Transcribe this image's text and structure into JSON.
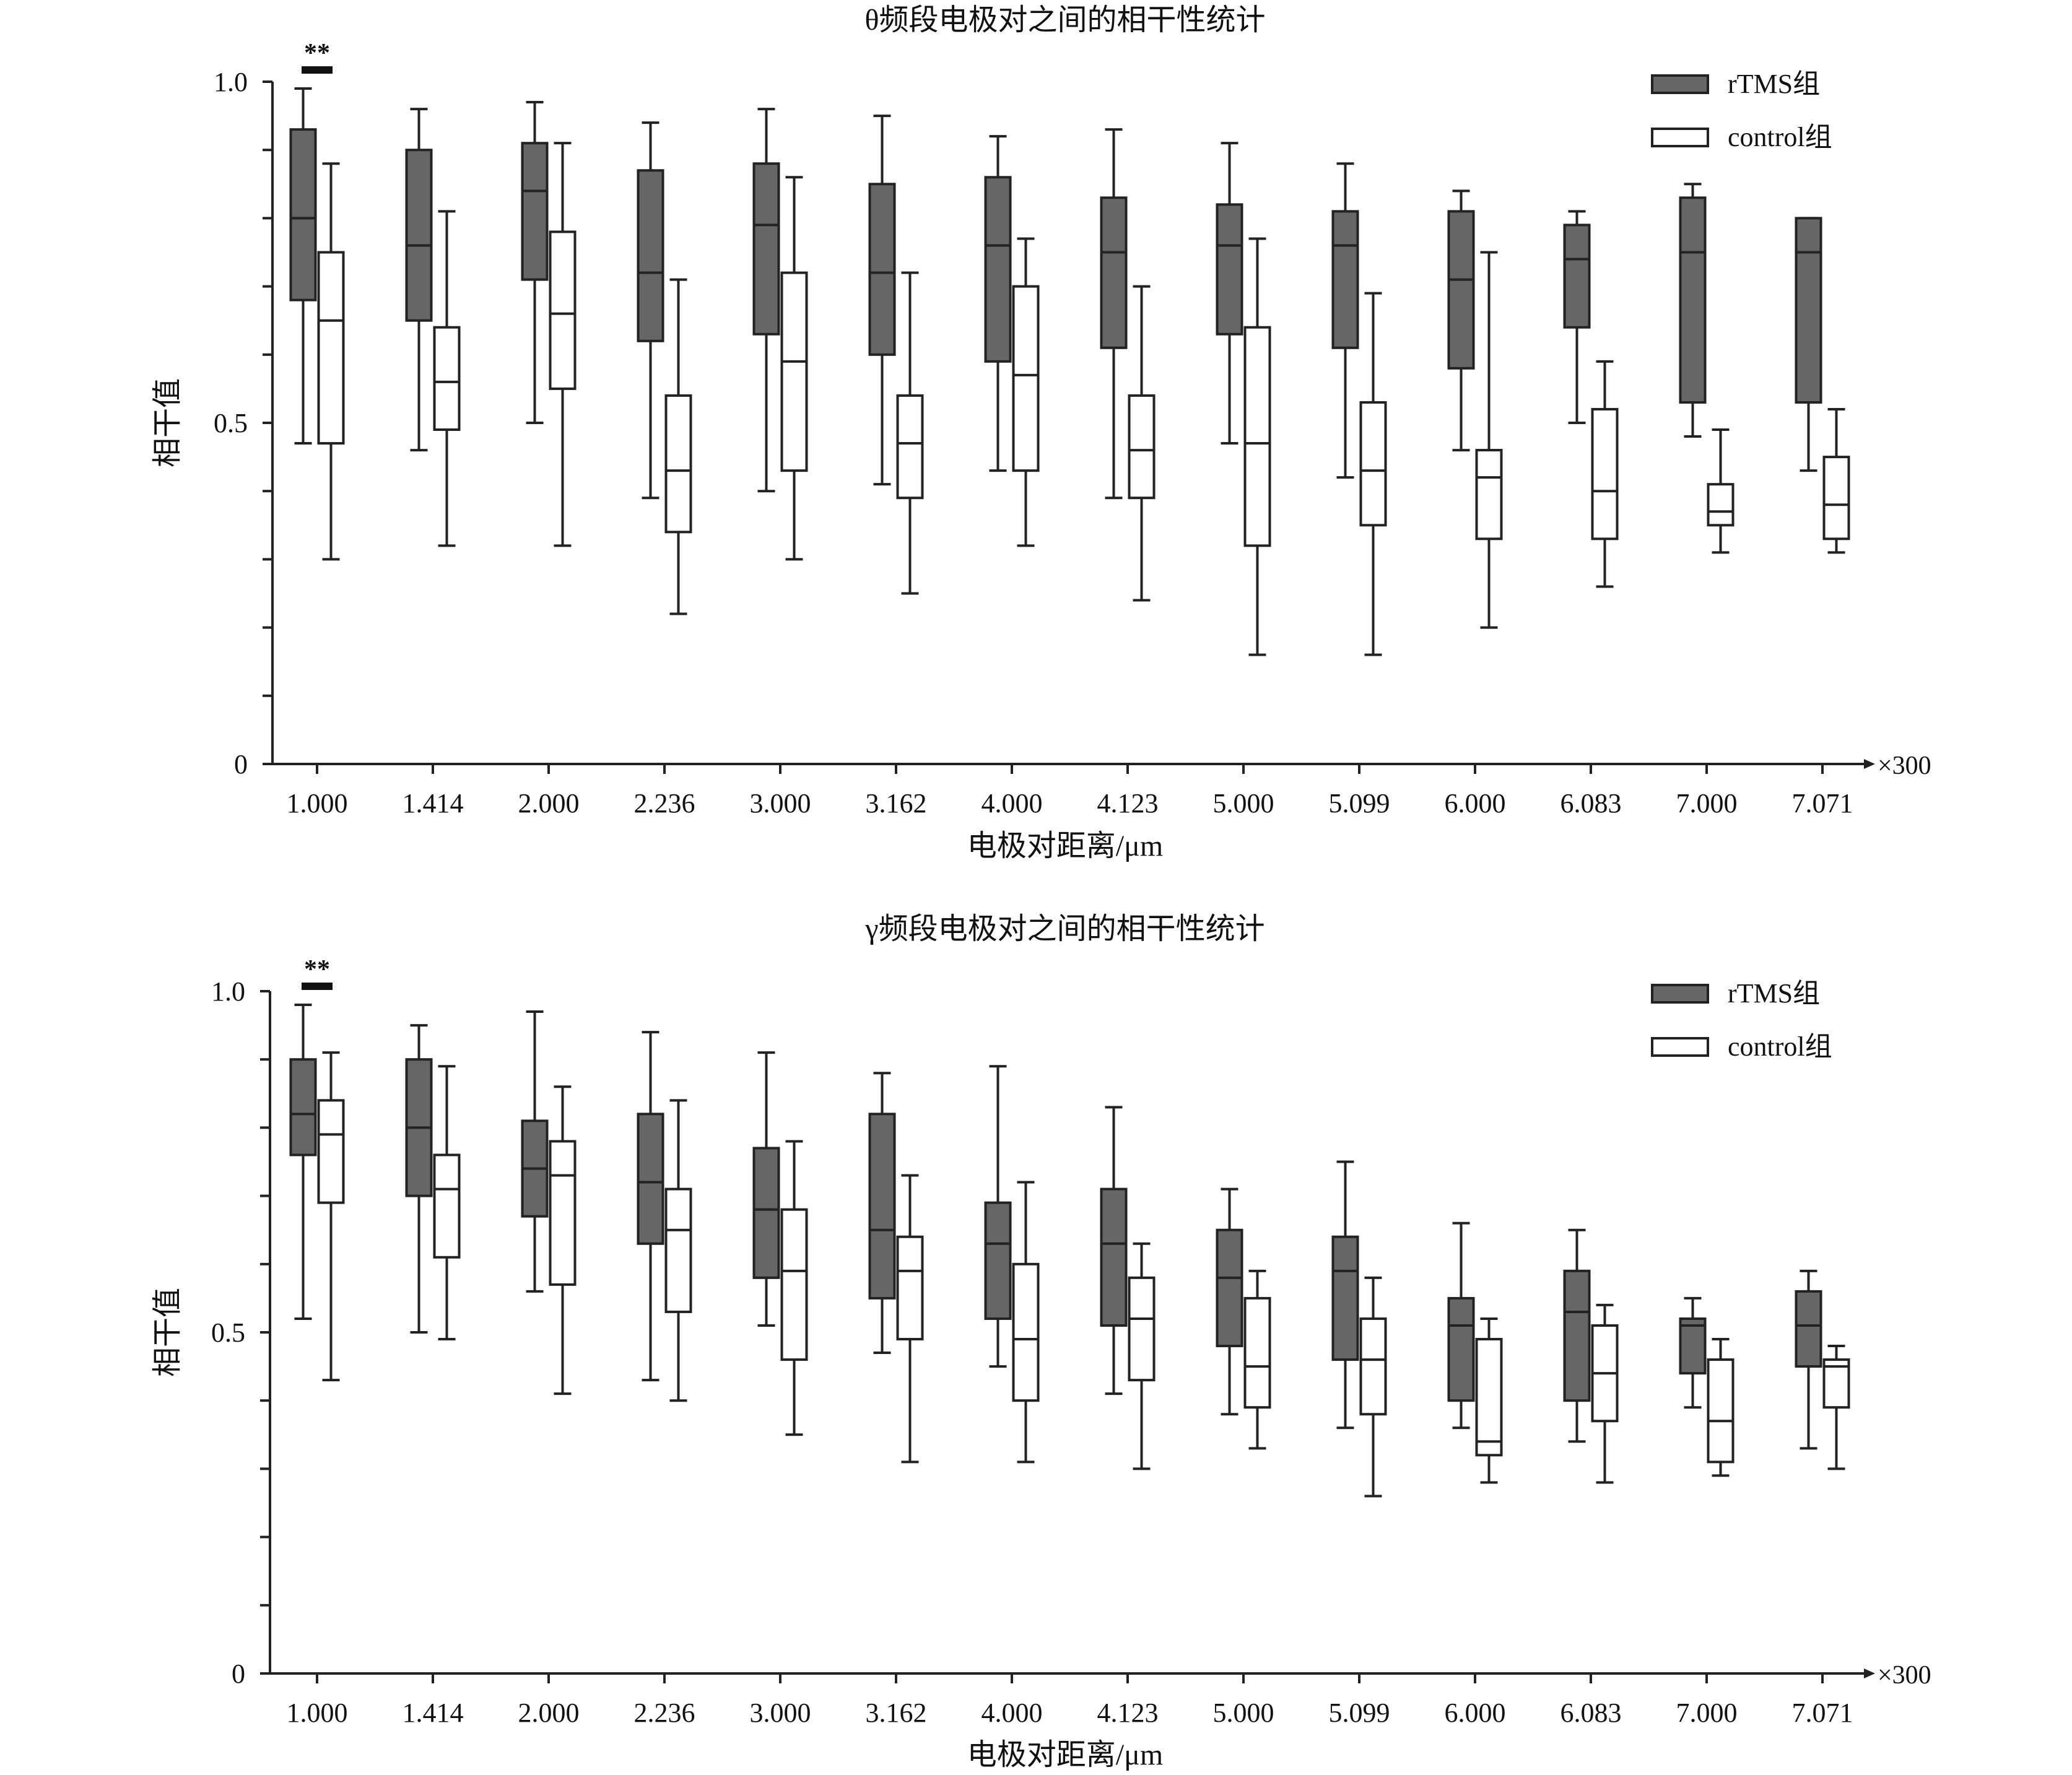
{
  "colors": {
    "rtms": "#666666",
    "control": "#ffffff",
    "stroke": "#222222"
  },
  "chart_data": [
    {
      "type": "box",
      "title": "θ频段电极对之间的相干性统计",
      "xlabel": "电极对距离/μm",
      "ylabel": "相干值",
      "x_multiplier": "×300",
      "ylim": [
        0,
        1.0
      ],
      "ytick_labels": [
        "0",
        "0.5",
        "1.0"
      ],
      "ytick_values": [
        0,
        0.1,
        0.2,
        0.3,
        0.4,
        0.5,
        0.6,
        0.7,
        0.8,
        0.9,
        1.0
      ],
      "legend": [
        "rTMS组",
        "control组"
      ],
      "legend_position": "top-right",
      "significance": {
        "category_index": 0,
        "label": "**"
      },
      "categories": [
        "1.000",
        "1.414",
        "2.000",
        "2.236",
        "3.000",
        "3.162",
        "4.000",
        "4.123",
        "5.000",
        "5.099",
        "6.000",
        "6.083",
        "7.000",
        "7.071"
      ],
      "series": [
        {
          "name": "rTMS组",
          "boxes": [
            {
              "min": 0.47,
              "q1": 0.68,
              "median": 0.8,
              "q3": 0.93,
              "max": 0.99
            },
            {
              "min": 0.46,
              "q1": 0.65,
              "median": 0.76,
              "q3": 0.9,
              "max": 0.96
            },
            {
              "min": 0.5,
              "q1": 0.71,
              "median": 0.84,
              "q3": 0.91,
              "max": 0.97
            },
            {
              "min": 0.39,
              "q1": 0.62,
              "median": 0.72,
              "q3": 0.87,
              "max": 0.94
            },
            {
              "min": 0.4,
              "q1": 0.63,
              "median": 0.79,
              "q3": 0.88,
              "max": 0.96
            },
            {
              "min": 0.41,
              "q1": 0.6,
              "median": 0.72,
              "q3": 0.85,
              "max": 0.95
            },
            {
              "min": 0.43,
              "q1": 0.59,
              "median": 0.76,
              "q3": 0.86,
              "max": 0.92
            },
            {
              "min": 0.39,
              "q1": 0.61,
              "median": 0.75,
              "q3": 0.83,
              "max": 0.93
            },
            {
              "min": 0.47,
              "q1": 0.63,
              "median": 0.76,
              "q3": 0.82,
              "max": 0.91
            },
            {
              "min": 0.42,
              "q1": 0.61,
              "median": 0.76,
              "q3": 0.81,
              "max": 0.88
            },
            {
              "min": 0.46,
              "q1": 0.58,
              "median": 0.71,
              "q3": 0.81,
              "max": 0.84
            },
            {
              "min": 0.5,
              "q1": 0.64,
              "median": 0.74,
              "q3": 0.79,
              "max": 0.81
            },
            {
              "min": 0.48,
              "q1": 0.53,
              "median": 0.75,
              "q3": 0.83,
              "max": 0.85
            },
            {
              "min": 0.43,
              "q1": 0.53,
              "median": 0.75,
              "q3": 0.8,
              "max": 0.8
            }
          ]
        },
        {
          "name": "control组",
          "boxes": [
            {
              "min": 0.3,
              "q1": 0.47,
              "median": 0.65,
              "q3": 0.75,
              "max": 0.88
            },
            {
              "min": 0.32,
              "q1": 0.49,
              "median": 0.56,
              "q3": 0.64,
              "max": 0.81
            },
            {
              "min": 0.32,
              "q1": 0.55,
              "median": 0.66,
              "q3": 0.78,
              "max": 0.91
            },
            {
              "min": 0.22,
              "q1": 0.34,
              "median": 0.43,
              "q3": 0.54,
              "max": 0.71
            },
            {
              "min": 0.3,
              "q1": 0.43,
              "median": 0.59,
              "q3": 0.72,
              "max": 0.86
            },
            {
              "min": 0.25,
              "q1": 0.39,
              "median": 0.47,
              "q3": 0.54,
              "max": 0.72
            },
            {
              "min": 0.32,
              "q1": 0.43,
              "median": 0.57,
              "q3": 0.7,
              "max": 0.77
            },
            {
              "min": 0.24,
              "q1": 0.39,
              "median": 0.46,
              "q3": 0.54,
              "max": 0.7
            },
            {
              "min": 0.16,
              "q1": 0.32,
              "median": 0.47,
              "q3": 0.64,
              "max": 0.77
            },
            {
              "min": 0.16,
              "q1": 0.35,
              "median": 0.43,
              "q3": 0.53,
              "max": 0.69
            },
            {
              "min": 0.2,
              "q1": 0.33,
              "median": 0.42,
              "q3": 0.46,
              "max": 0.75
            },
            {
              "min": 0.26,
              "q1": 0.33,
              "median": 0.4,
              "q3": 0.52,
              "max": 0.59
            },
            {
              "min": 0.31,
              "q1": 0.35,
              "median": 0.37,
              "q3": 0.41,
              "max": 0.49
            },
            {
              "min": 0.31,
              "q1": 0.33,
              "median": 0.38,
              "q3": 0.45,
              "max": 0.52
            }
          ]
        }
      ]
    },
    {
      "type": "box",
      "title": "γ频段电极对之间的相干性统计",
      "xlabel": "电极对距离/μm",
      "ylabel": "相干值",
      "x_multiplier": "×300",
      "ylim": [
        0,
        1.0
      ],
      "ytick_labels": [
        "0",
        "0.5",
        "1.0"
      ],
      "ytick_values": [
        0,
        0.1,
        0.2,
        0.3,
        0.4,
        0.5,
        0.6,
        0.7,
        0.8,
        0.9,
        1.0
      ],
      "legend": [
        "rTMS组",
        "control组"
      ],
      "legend_position": "top-right",
      "significance": {
        "category_index": 0,
        "label": "**"
      },
      "categories": [
        "1.000",
        "1.414",
        "2.000",
        "2.236",
        "3.000",
        "3.162",
        "4.000",
        "4.123",
        "5.000",
        "5.099",
        "6.000",
        "6.083",
        "7.000",
        "7.071"
      ],
      "series": [
        {
          "name": "rTMS组",
          "boxes": [
            {
              "min": 0.52,
              "q1": 0.76,
              "median": 0.82,
              "q3": 0.9,
              "max": 0.98
            },
            {
              "min": 0.5,
              "q1": 0.7,
              "median": 0.8,
              "q3": 0.9,
              "max": 0.95
            },
            {
              "min": 0.56,
              "q1": 0.67,
              "median": 0.74,
              "q3": 0.81,
              "max": 0.97
            },
            {
              "min": 0.43,
              "q1": 0.63,
              "median": 0.72,
              "q3": 0.82,
              "max": 0.94
            },
            {
              "min": 0.51,
              "q1": 0.58,
              "median": 0.68,
              "q3": 0.77,
              "max": 0.91
            },
            {
              "min": 0.47,
              "q1": 0.55,
              "median": 0.65,
              "q3": 0.82,
              "max": 0.88
            },
            {
              "min": 0.45,
              "q1": 0.52,
              "median": 0.63,
              "q3": 0.69,
              "max": 0.89
            },
            {
              "min": 0.41,
              "q1": 0.51,
              "median": 0.63,
              "q3": 0.71,
              "max": 0.83
            },
            {
              "min": 0.38,
              "q1": 0.48,
              "median": 0.58,
              "q3": 0.65,
              "max": 0.71
            },
            {
              "min": 0.36,
              "q1": 0.46,
              "median": 0.59,
              "q3": 0.64,
              "max": 0.75
            },
            {
              "min": 0.36,
              "q1": 0.4,
              "median": 0.51,
              "q3": 0.55,
              "max": 0.66
            },
            {
              "min": 0.34,
              "q1": 0.4,
              "median": 0.53,
              "q3": 0.59,
              "max": 0.65
            },
            {
              "min": 0.39,
              "q1": 0.44,
              "median": 0.51,
              "q3": 0.52,
              "max": 0.55
            },
            {
              "min": 0.33,
              "q1": 0.45,
              "median": 0.51,
              "q3": 0.56,
              "max": 0.59
            }
          ]
        },
        {
          "name": "control组",
          "boxes": [
            {
              "min": 0.43,
              "q1": 0.69,
              "median": 0.79,
              "q3": 0.84,
              "max": 0.91
            },
            {
              "min": 0.49,
              "q1": 0.61,
              "median": 0.71,
              "q3": 0.76,
              "max": 0.89
            },
            {
              "min": 0.41,
              "q1": 0.57,
              "median": 0.73,
              "q3": 0.78,
              "max": 0.86
            },
            {
              "min": 0.4,
              "q1": 0.53,
              "median": 0.65,
              "q3": 0.71,
              "max": 0.84
            },
            {
              "min": 0.35,
              "q1": 0.46,
              "median": 0.59,
              "q3": 0.68,
              "max": 0.78
            },
            {
              "min": 0.31,
              "q1": 0.49,
              "median": 0.59,
              "q3": 0.64,
              "max": 0.73
            },
            {
              "min": 0.31,
              "q1": 0.4,
              "median": 0.49,
              "q3": 0.6,
              "max": 0.72
            },
            {
              "min": 0.3,
              "q1": 0.43,
              "median": 0.52,
              "q3": 0.58,
              "max": 0.63
            },
            {
              "min": 0.33,
              "q1": 0.39,
              "median": 0.45,
              "q3": 0.55,
              "max": 0.59
            },
            {
              "min": 0.26,
              "q1": 0.38,
              "median": 0.46,
              "q3": 0.52,
              "max": 0.58
            },
            {
              "min": 0.28,
              "q1": 0.32,
              "median": 0.34,
              "q3": 0.49,
              "max": 0.52
            },
            {
              "min": 0.28,
              "q1": 0.37,
              "median": 0.44,
              "q3": 0.51,
              "max": 0.54
            },
            {
              "min": 0.29,
              "q1": 0.31,
              "median": 0.37,
              "q3": 0.46,
              "max": 0.49
            },
            {
              "min": 0.3,
              "q1": 0.39,
              "median": 0.45,
              "q3": 0.46,
              "max": 0.48
            }
          ]
        }
      ]
    }
  ]
}
